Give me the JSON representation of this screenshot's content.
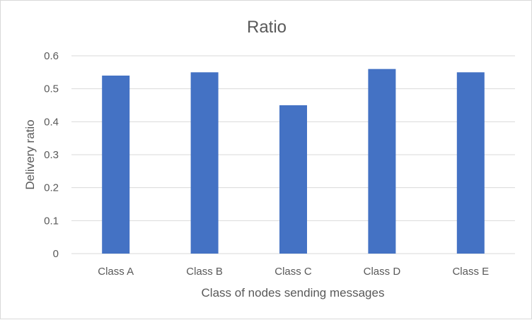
{
  "chart_data": {
    "type": "bar",
    "title": "Ratio",
    "xlabel": "Class of nodes sending messages",
    "ylabel": "Delivery ratio",
    "categories": [
      "Class A",
      "Class B",
      "Class C",
      "Class D",
      "Class E"
    ],
    "values": [
      0.54,
      0.55,
      0.45,
      0.56,
      0.55
    ],
    "ylim": [
      0,
      0.6
    ],
    "yticks": [
      "0",
      "0.1",
      "0.2",
      "0.3",
      "0.4",
      "0.5",
      "0.6"
    ],
    "grid": true,
    "legend": "none",
    "bar_color": "#4472C4"
  }
}
